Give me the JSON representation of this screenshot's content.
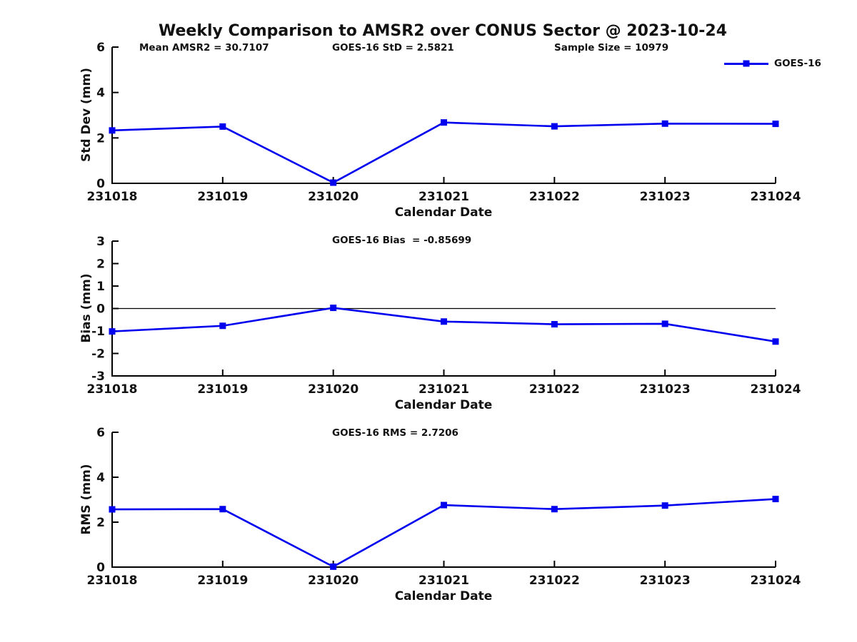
{
  "title": "Weekly Comparison to AMSR2 over CONUS Sector @ 2023-10-24",
  "stats": {
    "mean_amsr2": "Mean AMSR2 = 30.7107",
    "goes16_std": "GOES-16 StD = 2.5821",
    "sample_size": "Sample Size = 10979",
    "goes16_bias": "GOES-16 Bias  = -0.85699",
    "goes16_rms": "GOES-16 RMS = 2.7206"
  },
  "legend": {
    "label": "GOES-16",
    "position": "top-right",
    "marker": "filled-square"
  },
  "colors": {
    "series": "#0000EE",
    "axis": "#000000",
    "text": "#111111"
  },
  "chart_data": [
    {
      "type": "line",
      "name": "std-dev",
      "title": "",
      "annotation": "GOES-16 StD = 2.5821",
      "categories": [
        "231018",
        "231019",
        "231020",
        "231021",
        "231022",
        "231023",
        "231024"
      ],
      "series": [
        {
          "name": "GOES-16",
          "values": [
            2.33,
            2.5,
            0.03,
            2.68,
            2.51,
            2.63,
            2.62
          ]
        }
      ],
      "xlabel": "Calendar Date",
      "ylabel": "Std Dev (mm)",
      "ylim": [
        0,
        6
      ],
      "yticks": [
        0,
        2,
        4,
        6
      ],
      "grid": false,
      "zero_line": false
    },
    {
      "type": "line",
      "name": "bias",
      "title": "",
      "annotation": "GOES-16 Bias  = -0.85699",
      "categories": [
        "231018",
        "231019",
        "231020",
        "231021",
        "231022",
        "231023",
        "231024"
      ],
      "series": [
        {
          "name": "GOES-16",
          "values": [
            -1.02,
            -0.77,
            0.03,
            -0.58,
            -0.7,
            -0.68,
            -1.47
          ]
        }
      ],
      "xlabel": "Calendar Date",
      "ylabel": "Bias (mm)",
      "ylim": [
        -3,
        3
      ],
      "yticks": [
        -3,
        -2,
        -1,
        0,
        1,
        2,
        3
      ],
      "grid": false,
      "zero_line": true
    },
    {
      "type": "line",
      "name": "rms",
      "title": "",
      "annotation": "GOES-16 RMS = 2.7206",
      "categories": [
        "231018",
        "231019",
        "231020",
        "231021",
        "231022",
        "231023",
        "231024"
      ],
      "series": [
        {
          "name": "GOES-16",
          "values": [
            2.57,
            2.58,
            0.02,
            2.76,
            2.58,
            2.74,
            3.03
          ]
        }
      ],
      "xlabel": "Calendar Date",
      "ylabel": "RMS (mm)",
      "ylim": [
        0,
        6
      ],
      "yticks": [
        0,
        2,
        4,
        6
      ],
      "grid": false,
      "zero_line": false
    }
  ]
}
